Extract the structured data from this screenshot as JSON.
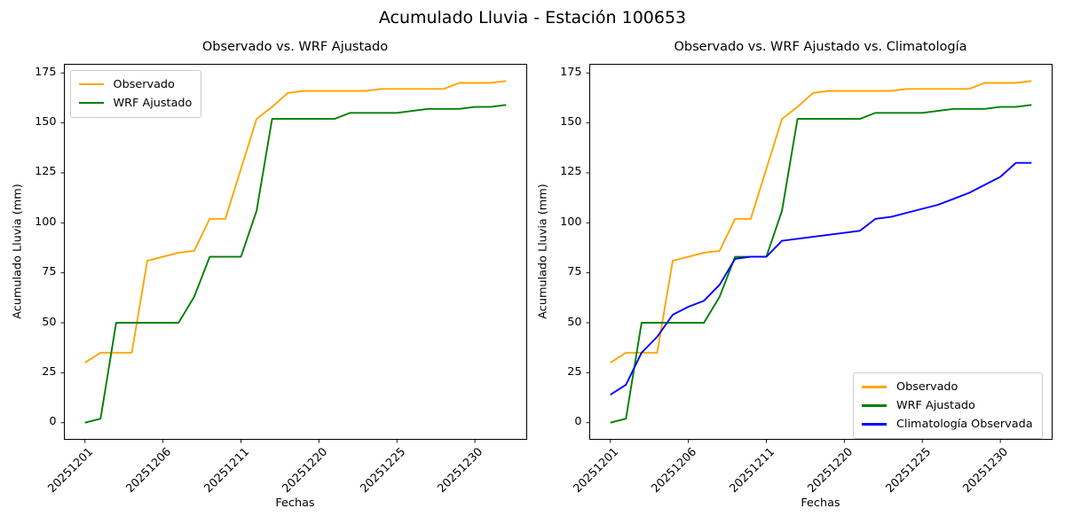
{
  "suptitle": "Acumulado Lluvia - Estación 100653",
  "chart_data": [
    {
      "type": "line",
      "title": "Observado vs. WRF Ajustado",
      "xlabel": "Fechas",
      "ylabel": "Acumulado Lluvia (mm)",
      "grid": false,
      "legend_position": "upper-left",
      "xlim": [
        -1.35,
        28.35
      ],
      "ylim": [
        -8.55,
        179.55
      ],
      "y_ticks": [
        0,
        25,
        50,
        75,
        100,
        125,
        150,
        175
      ],
      "x_tick_positions": [
        0,
        5,
        10,
        15,
        20,
        25
      ],
      "x_tick_labels": [
        "20251201",
        "20251206",
        "20251211",
        "20251220",
        "20251225",
        "20251230"
      ],
      "series": [
        {
          "name": "Observado",
          "color": "#FFA500",
          "values": [
            30,
            35,
            35,
            35,
            81,
            83,
            85,
            86,
            102,
            102,
            127,
            152,
            158,
            165,
            166,
            166,
            166,
            166,
            166,
            167,
            167,
            167,
            167,
            167,
            170,
            170,
            170,
            171
          ]
        },
        {
          "name": "WRF Ajustado",
          "color": "#008000",
          "values": [
            0,
            2,
            50,
            50,
            50,
            50,
            50,
            63,
            83,
            83,
            83,
            106,
            152,
            152,
            152,
            152,
            152,
            155,
            155,
            155,
            155,
            156,
            157,
            157,
            157,
            158,
            158,
            159
          ]
        }
      ]
    },
    {
      "type": "line",
      "title": "Observado vs. WRF Ajustado vs. Climatología",
      "xlabel": "Fechas",
      "ylabel": "Acumulado Lluvia (mm)",
      "grid": false,
      "legend_position": "lower-right",
      "xlim": [
        -1.35,
        28.35
      ],
      "ylim": [
        -8.55,
        179.55
      ],
      "y_ticks": [
        0,
        25,
        50,
        75,
        100,
        125,
        150,
        175
      ],
      "x_tick_positions": [
        0,
        5,
        10,
        15,
        20,
        25
      ],
      "x_tick_labels": [
        "20251201",
        "20251206",
        "20251211",
        "20251220",
        "20251225",
        "20251230"
      ],
      "series": [
        {
          "name": "Observado",
          "color": "#FFA500",
          "values": [
            30,
            35,
            35,
            35,
            81,
            83,
            85,
            86,
            102,
            102,
            127,
            152,
            158,
            165,
            166,
            166,
            166,
            166,
            166,
            167,
            167,
            167,
            167,
            167,
            170,
            170,
            170,
            171
          ]
        },
        {
          "name": "WRF Ajustado",
          "color": "#008000",
          "values": [
            0,
            2,
            50,
            50,
            50,
            50,
            50,
            63,
            83,
            83,
            83,
            106,
            152,
            152,
            152,
            152,
            152,
            155,
            155,
            155,
            155,
            156,
            157,
            157,
            157,
            158,
            158,
            159
          ]
        },
        {
          "name": "Climatología Observada",
          "color": "#0000FF",
          "values": [
            14,
            19,
            35,
            43,
            54,
            58,
            61,
            69,
            82,
            83,
            83,
            91,
            92,
            93,
            94,
            95,
            96,
            102,
            103,
            105,
            107,
            109,
            112,
            115,
            119,
            123,
            130,
            130
          ]
        }
      ]
    }
  ]
}
